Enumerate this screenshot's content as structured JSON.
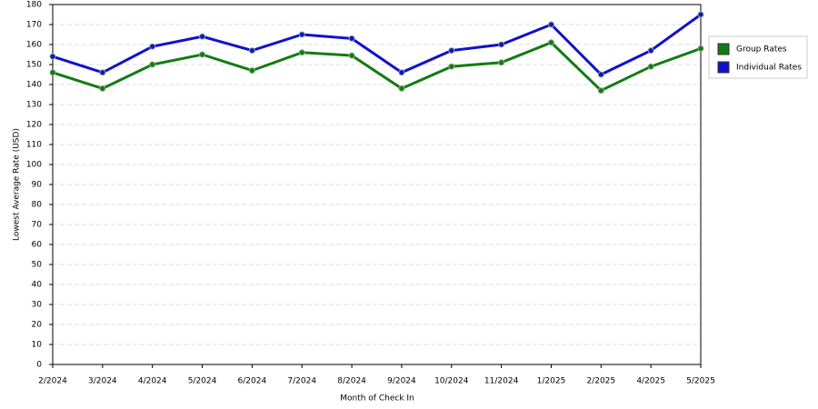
{
  "chart_data": {
    "type": "line",
    "x_label": "Month of Check In",
    "y_label": "Lowest Average Rate (USD)",
    "categories": [
      "2/2024",
      "3/2024",
      "4/2024",
      "5/2024",
      "6/2024",
      "7/2024",
      "8/2024",
      "9/2024",
      "10/2024",
      "11/2024",
      "1/2025",
      "2/2025",
      "4/2025",
      "5/2025"
    ],
    "series": [
      {
        "name": "Group Rates",
        "color": "#137b13",
        "values": [
          146,
          138,
          150,
          155,
          147,
          156,
          154.5,
          138,
          149,
          151,
          161,
          137,
          149,
          158
        ]
      },
      {
        "name": "Individual Rates",
        "color": "#1111cc",
        "values": [
          154,
          146,
          159,
          164,
          157,
          165,
          163,
          146,
          157,
          160,
          170,
          145,
          157,
          175
        ]
      }
    ],
    "ylim": [
      0,
      180
    ],
    "yticks": [
      0,
      10,
      20,
      30,
      40,
      50,
      60,
      70,
      80,
      90,
      100,
      110,
      120,
      130,
      140,
      150,
      160,
      170,
      180
    ],
    "grid": true,
    "legend": "right"
  }
}
